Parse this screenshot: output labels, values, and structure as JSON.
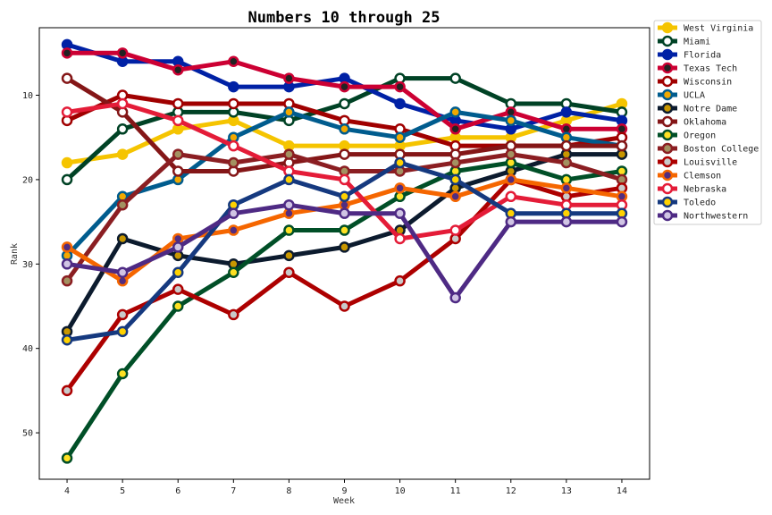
{
  "chart_data": {
    "type": "line",
    "title": "Numbers 10 through 25",
    "xlabel": "Week",
    "ylabel": "Rank",
    "x": [
      4,
      5,
      6,
      7,
      8,
      9,
      10,
      11,
      12,
      13,
      14
    ],
    "xlim": [
      3.5,
      14.5
    ],
    "ylim": [
      55.5,
      2
    ],
    "y_inverted": true,
    "yticks": [
      10,
      20,
      30,
      40,
      50
    ],
    "legend_position": "outside-top-right",
    "series": [
      {
        "name": "West Virginia",
        "line": "#F5C400",
        "edge": "#F5C400",
        "face": "#F5C400",
        "values": [
          18,
          17,
          14,
          13,
          16,
          16,
          16,
          15,
          15,
          13,
          11
        ]
      },
      {
        "name": "Miami",
        "line": "#004225",
        "edge": "#004225",
        "face": "#ffffff",
        "values": [
          20,
          14,
          12,
          12,
          13,
          11,
          8,
          8,
          11,
          11,
          12
        ]
      },
      {
        "name": "Florida",
        "line": "#0021A5",
        "edge": "#0021A5",
        "face": "#0021A5",
        "values": [
          4,
          6,
          6,
          9,
          9,
          8,
          11,
          13,
          14,
          12,
          13
        ]
      },
      {
        "name": "Texas Tech",
        "line": "#CC0033",
        "edge": "#CC0033",
        "face": "#222222",
        "values": [
          5,
          5,
          7,
          6,
          8,
          9,
          9,
          14,
          12,
          14,
          14
        ]
      },
      {
        "name": "Wisconsin",
        "line": "#A00000",
        "edge": "#A00000",
        "face": "#ffffff",
        "values": [
          13,
          10,
          11,
          11,
          11,
          13,
          14,
          16,
          16,
          16,
          15
        ]
      },
      {
        "name": "UCLA",
        "line": "#005C8E",
        "edge": "#005C8E",
        "face": "#F2A900",
        "values": [
          29,
          22,
          20,
          15,
          12,
          14,
          15,
          12,
          13,
          15,
          16
        ]
      },
      {
        "name": "Notre Dame",
        "line": "#0C1B2E",
        "edge": "#0C1B2E",
        "face": "#C99700",
        "values": [
          38,
          27,
          29,
          30,
          29,
          28,
          26,
          21,
          19,
          17,
          17
        ]
      },
      {
        "name": "Oklahoma",
        "line": "#841617",
        "edge": "#841617",
        "face": "#ffffff",
        "values": [
          8,
          12,
          19,
          19,
          18,
          17,
          17,
          17,
          16,
          16,
          16
        ]
      },
      {
        "name": "Oregon",
        "line": "#004F27",
        "edge": "#004F27",
        "face": "#FEE123",
        "values": [
          53,
          43,
          35,
          31,
          26,
          26,
          22,
          19,
          18,
          20,
          19
        ]
      },
      {
        "name": "Boston College",
        "line": "#8B1E22",
        "edge": "#8B1E22",
        "face": "#A39161",
        "values": [
          32,
          23,
          17,
          18,
          17,
          19,
          19,
          18,
          17,
          18,
          20
        ]
      },
      {
        "name": "Louisville",
        "line": "#AD0000",
        "edge": "#AD0000",
        "face": "#C9C9C9",
        "values": [
          45,
          36,
          33,
          36,
          31,
          35,
          32,
          27,
          20,
          22,
          21
        ]
      },
      {
        "name": "Clemson",
        "line": "#F56600",
        "edge": "#F56600",
        "face": "#522D80",
        "values": [
          28,
          32,
          27,
          26,
          24,
          23,
          21,
          22,
          20,
          21,
          22
        ]
      },
      {
        "name": "Nebraska",
        "line": "#E41C38",
        "edge": "#E41C38",
        "face": "#ffffff",
        "values": [
          12,
          11,
          13,
          16,
          19,
          20,
          27,
          26,
          22,
          23,
          23
        ]
      },
      {
        "name": "Toledo",
        "line": "#15397F",
        "edge": "#15397F",
        "face": "#FFD200",
        "values": [
          39,
          38,
          31,
          23,
          20,
          22,
          18,
          20,
          24,
          24,
          24
        ]
      },
      {
        "name": "Northwestern",
        "line": "#4E2A84",
        "edge": "#4E2A84",
        "face": "#D0C4E4",
        "values": [
          30,
          31,
          28,
          24,
          23,
          24,
          24,
          34,
          25,
          25,
          25
        ]
      }
    ]
  }
}
